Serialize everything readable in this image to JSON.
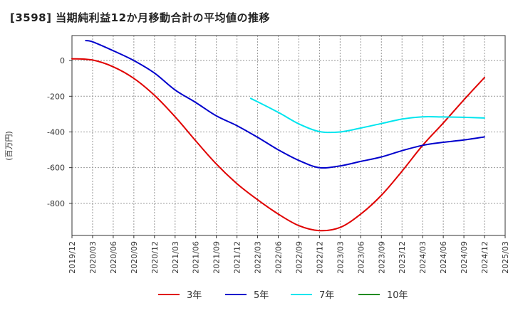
{
  "chart_data": {
    "type": "line",
    "title": "[3598]  当期純利益12か月移動合計の平均値の推移",
    "ylabel": "(百万円)",
    "xlabel": "",
    "ylim": [
      -980,
      140
    ],
    "yticks": [
      0,
      -200,
      -400,
      -600,
      -800
    ],
    "x_ticks": [
      "2019/12",
      "2020/03",
      "2020/06",
      "2020/09",
      "2020/12",
      "2021/03",
      "2021/06",
      "2021/09",
      "2021/12",
      "2022/03",
      "2022/06",
      "2022/09",
      "2022/12",
      "2023/03",
      "2023/06",
      "2023/09",
      "2023/12",
      "2024/03",
      "2024/06",
      "2024/09",
      "2024/12",
      "2025/03"
    ],
    "grid": true,
    "legend_position": "bottom",
    "series": [
      {
        "name": "3年",
        "color": "#e00000",
        "points": [
          [
            "2019/12",
            10
          ],
          [
            "2020/03",
            3
          ],
          [
            "2020/06",
            -35
          ],
          [
            "2020/09",
            -100
          ],
          [
            "2020/12",
            -195
          ],
          [
            "2021/03",
            -315
          ],
          [
            "2021/06",
            -450
          ],
          [
            "2021/09",
            -580
          ],
          [
            "2021/12",
            -690
          ],
          [
            "2022/03",
            -780
          ],
          [
            "2022/06",
            -860
          ],
          [
            "2022/09",
            -925
          ],
          [
            "2022/12",
            -953
          ],
          [
            "2023/03",
            -935
          ],
          [
            "2023/06",
            -860
          ],
          [
            "2023/09",
            -755
          ],
          [
            "2023/12",
            -620
          ],
          [
            "2024/03",
            -475
          ],
          [
            "2024/06",
            -350
          ],
          [
            "2024/09",
            -220
          ],
          [
            "2024/12",
            -95
          ]
        ]
      },
      {
        "name": "5年",
        "color": "#0000cc",
        "points": [
          [
            "2020/02",
            112
          ],
          [
            "2020/03",
            105
          ],
          [
            "2020/06",
            55
          ],
          [
            "2020/09",
            0
          ],
          [
            "2020/12",
            -70
          ],
          [
            "2021/03",
            -165
          ],
          [
            "2021/06",
            -235
          ],
          [
            "2021/09",
            -310
          ],
          [
            "2021/12",
            -365
          ],
          [
            "2022/03",
            -430
          ],
          [
            "2022/06",
            -500
          ],
          [
            "2022/09",
            -560
          ],
          [
            "2022/12",
            -600
          ],
          [
            "2023/03",
            -590
          ],
          [
            "2023/06",
            -565
          ],
          [
            "2023/09",
            -540
          ],
          [
            "2023/12",
            -505
          ],
          [
            "2024/03",
            -475
          ],
          [
            "2024/06",
            -458
          ],
          [
            "2024/09",
            -445
          ],
          [
            "2024/12",
            -428
          ]
        ]
      },
      {
        "name": "7年",
        "color": "#00e5ee",
        "points": [
          [
            "2022/02",
            -212
          ],
          [
            "2022/06",
            -290
          ],
          [
            "2022/09",
            -355
          ],
          [
            "2022/12",
            -398
          ],
          [
            "2023/03",
            -400
          ],
          [
            "2023/06",
            -378
          ],
          [
            "2023/09",
            -353
          ],
          [
            "2023/12",
            -328
          ],
          [
            "2024/03",
            -315
          ],
          [
            "2024/06",
            -316
          ],
          [
            "2024/09",
            -318
          ],
          [
            "2024/12",
            -322
          ]
        ]
      },
      {
        "name": "10年",
        "color": "#228b22",
        "points": []
      }
    ]
  }
}
